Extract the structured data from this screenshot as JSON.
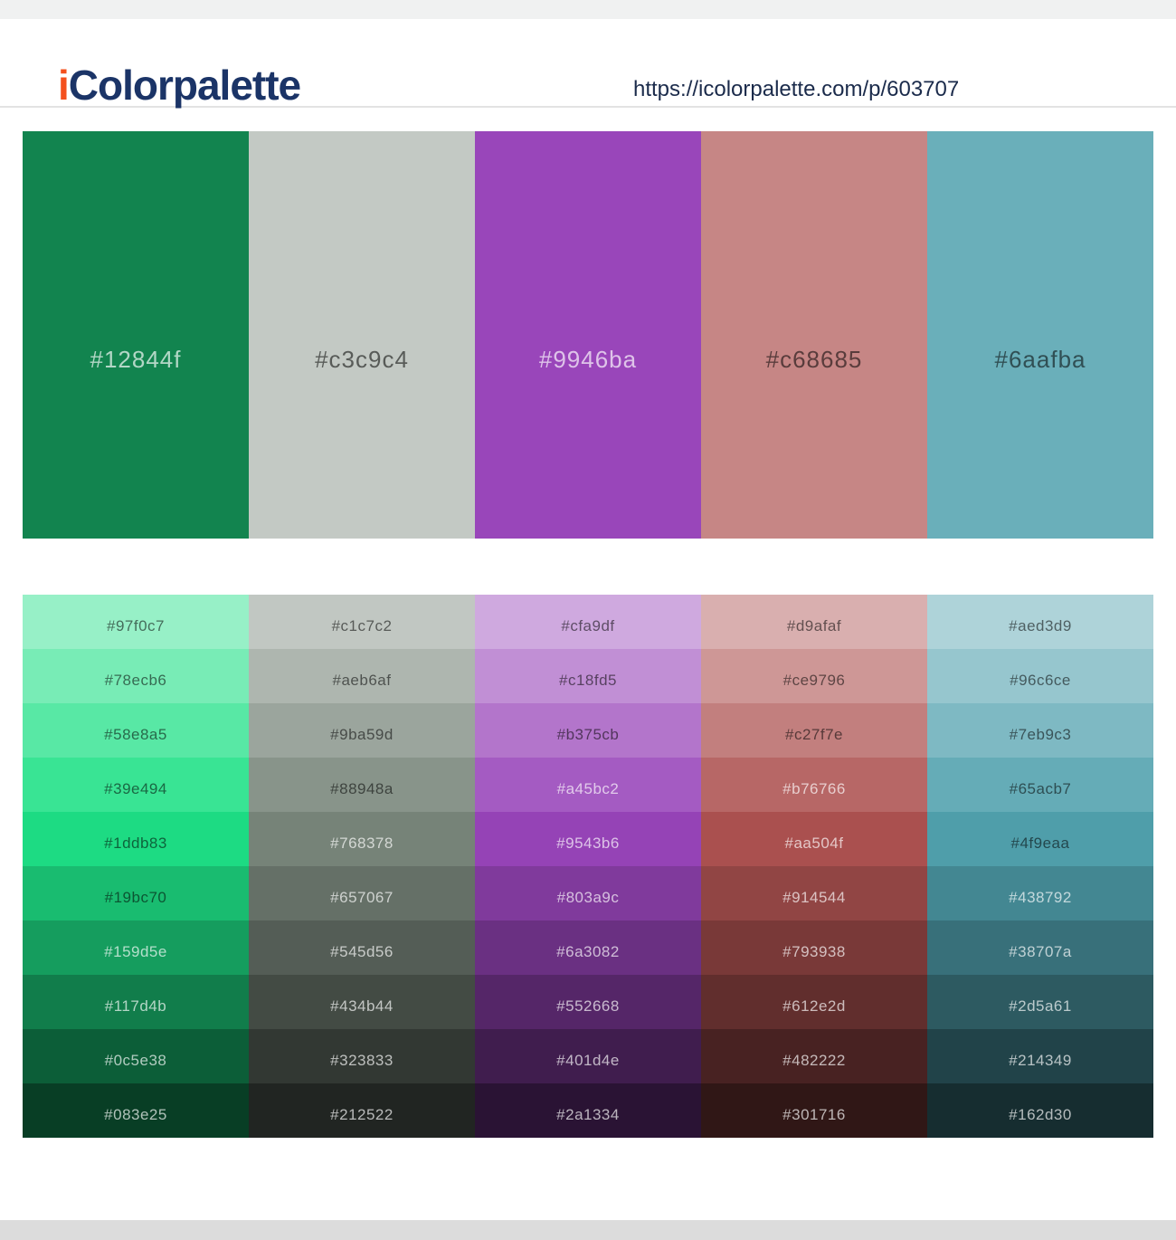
{
  "header": {
    "logo_prefix": "i",
    "logo_rest": "Colorpalette",
    "url": "https://icolorpalette.com/p/603707"
  },
  "palette": {
    "swatches": [
      "#12844f",
      "#c3c9c4",
      "#9946ba",
      "#c68685",
      "#6aafba"
    ]
  },
  "shades": {
    "rows": [
      [
        "#97f0c7",
        "#c1c7c2",
        "#cfa9df",
        "#d9afaf",
        "#aed3d9"
      ],
      [
        "#78ecb6",
        "#aeb6af",
        "#c18fd5",
        "#ce9796",
        "#96c6ce"
      ],
      [
        "#58e8a5",
        "#9ba59d",
        "#b375cb",
        "#c27f7e",
        "#7eb9c3"
      ],
      [
        "#39e494",
        "#88948a",
        "#a45bc2",
        "#b76766",
        "#65acb7"
      ],
      [
        "#1ddb83",
        "#768378",
        "#9543b6",
        "#aa504f",
        "#4f9eaa"
      ],
      [
        "#19bc70",
        "#657067",
        "#803a9c",
        "#914544",
        "#438792"
      ],
      [
        "#159d5e",
        "#545d56",
        "#6a3082",
        "#793938",
        "#38707a"
      ],
      [
        "#117d4b",
        "#434b44",
        "#552668",
        "#612e2d",
        "#2d5a61"
      ],
      [
        "#0c5e38",
        "#323833",
        "#401d4e",
        "#482222",
        "#214349"
      ],
      [
        "#083e25",
        "#212522",
        "#2a1334",
        "#301716",
        "#162d30"
      ]
    ]
  },
  "theme": {
    "logo_accent": "#f4501e",
    "logo_navy": "#1b3467",
    "url_color": "#1b2b4b",
    "top_strip": "#f0f1f1",
    "header_border": "#e3e3e3",
    "bottom_bar": "#dcdcdc"
  }
}
